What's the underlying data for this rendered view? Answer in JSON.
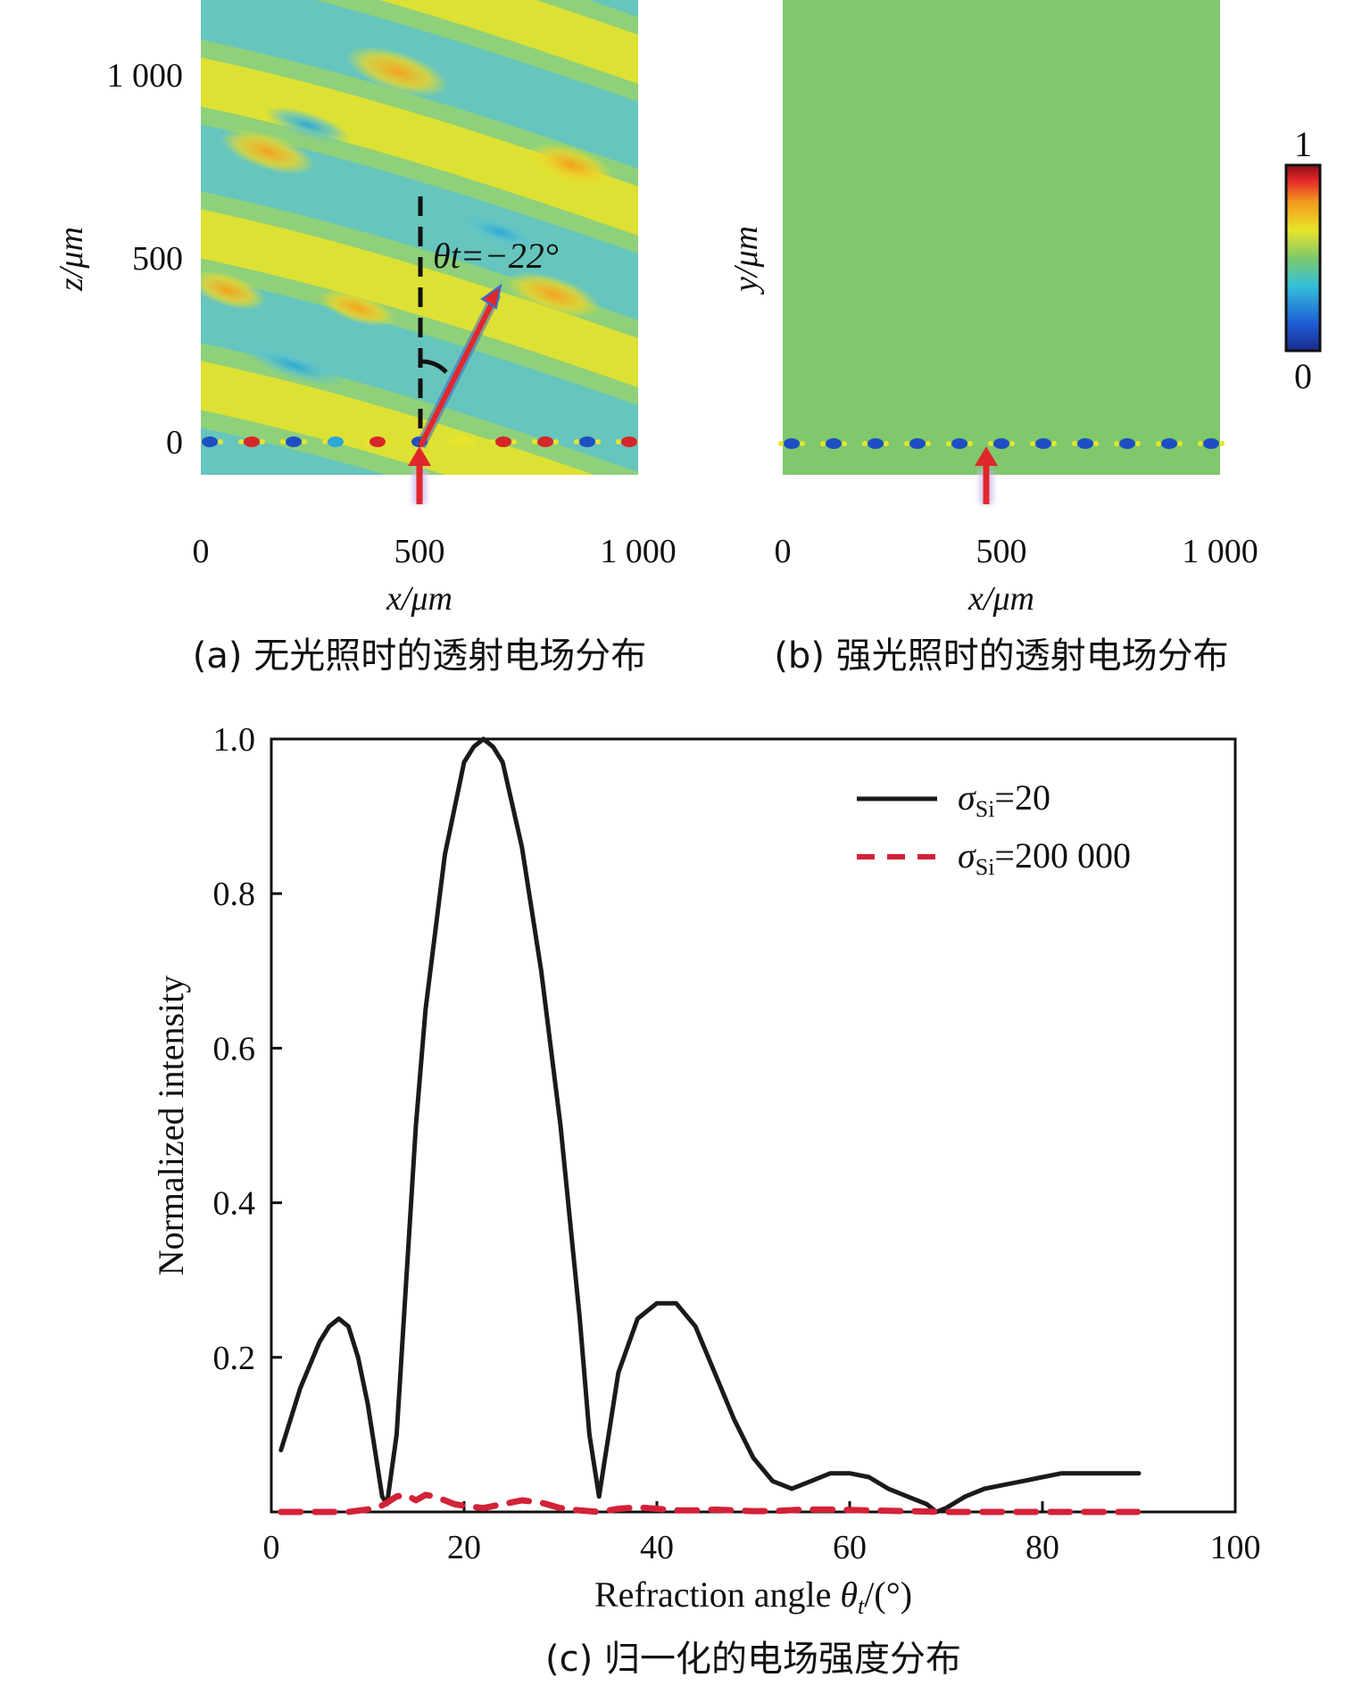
{
  "panel_a": {
    "caption": "(a) 无光照时的透射电场分布",
    "x_axis_label": "x/μm",
    "y_axis_label": "z/μm",
    "x_ticks": [
      "0",
      "500",
      "1 000"
    ],
    "y_ticks": [
      "0",
      "500",
      "1 000"
    ],
    "angle_annotation": "θt=−22°"
  },
  "panel_b": {
    "caption": "(b) 强光照时的透射电场分布",
    "x_axis_label": "x/μm",
    "y_axis_label": "y/μm",
    "x_ticks": [
      "0",
      "500",
      "1 000"
    ]
  },
  "colorbar": {
    "max_label": "1",
    "min_label": "0"
  },
  "colors": {
    "field_green": "#7fc86c",
    "field_yellow": "#e8e42a",
    "field_cyan": "#5fc3c9",
    "arrow_red": "#e0282c",
    "series_black": "#1a1a1a",
    "series_red": "#d32237"
  },
  "chart_data": {
    "type": "line",
    "caption": "(c) 归一化的电场强度分布",
    "xlabel": "Refraction angle θt/(°)",
    "ylabel": "Normalized intensity",
    "xlim": [
      0,
      100
    ],
    "ylim": [
      0,
      1.0
    ],
    "x_ticks": [
      "0",
      "20",
      "40",
      "60",
      "80",
      "100"
    ],
    "y_ticks": [
      "0.2",
      "0.4",
      "0.6",
      "0.8",
      "1.0"
    ],
    "legend_position": "top-right",
    "series": [
      {
        "name": "σSi=20",
        "style": "solid",
        "color": "#1a1a1a",
        "points": [
          [
            1,
            0.08
          ],
          [
            3,
            0.16
          ],
          [
            5,
            0.22
          ],
          [
            6,
            0.24
          ],
          [
            7,
            0.25
          ],
          [
            8,
            0.24
          ],
          [
            9,
            0.2
          ],
          [
            10,
            0.14
          ],
          [
            11,
            0.06
          ],
          [
            11.5,
            0.02
          ],
          [
            12,
            0.01
          ],
          [
            13,
            0.1
          ],
          [
            14,
            0.3
          ],
          [
            15,
            0.5
          ],
          [
            16,
            0.65
          ],
          [
            18,
            0.85
          ],
          [
            20,
            0.97
          ],
          [
            21,
            0.99
          ],
          [
            22,
            1.0
          ],
          [
            23,
            0.99
          ],
          [
            24,
            0.97
          ],
          [
            26,
            0.86
          ],
          [
            28,
            0.7
          ],
          [
            30,
            0.5
          ],
          [
            32,
            0.25
          ],
          [
            33,
            0.1
          ],
          [
            34,
            0.02
          ],
          [
            35,
            0.1
          ],
          [
            36,
            0.18
          ],
          [
            38,
            0.25
          ],
          [
            40,
            0.27
          ],
          [
            42,
            0.27
          ],
          [
            44,
            0.24
          ],
          [
            46,
            0.18
          ],
          [
            48,
            0.12
          ],
          [
            50,
            0.07
          ],
          [
            52,
            0.04
          ],
          [
            54,
            0.03
          ],
          [
            56,
            0.04
          ],
          [
            58,
            0.05
          ],
          [
            60,
            0.05
          ],
          [
            62,
            0.045
          ],
          [
            64,
            0.03
          ],
          [
            66,
            0.02
          ],
          [
            68,
            0.01
          ],
          [
            69,
            0.0
          ],
          [
            70,
            0.005
          ],
          [
            72,
            0.02
          ],
          [
            74,
            0.03
          ],
          [
            76,
            0.035
          ],
          [
            78,
            0.04
          ],
          [
            80,
            0.045
          ],
          [
            82,
            0.05
          ],
          [
            85,
            0.05
          ],
          [
            88,
            0.05
          ],
          [
            90,
            0.05
          ]
        ]
      },
      {
        "name": "σSi=200 000",
        "style": "dashed",
        "color": "#d32237",
        "points": [
          [
            1,
            0.0
          ],
          [
            5,
            0.0
          ],
          [
            8,
            0.0
          ],
          [
            11,
            0.005
          ],
          [
            12,
            0.012
          ],
          [
            13,
            0.02
          ],
          [
            14,
            0.022
          ],
          [
            15,
            0.015
          ],
          [
            16,
            0.022
          ],
          [
            17,
            0.02
          ],
          [
            18,
            0.015
          ],
          [
            19,
            0.01
          ],
          [
            20,
            0.008
          ],
          [
            22,
            0.005
          ],
          [
            24,
            0.01
          ],
          [
            26,
            0.015
          ],
          [
            28,
            0.012
          ],
          [
            30,
            0.005
          ],
          [
            32,
            0.002
          ],
          [
            34,
            0.0
          ],
          [
            36,
            0.004
          ],
          [
            38,
            0.006
          ],
          [
            40,
            0.004
          ],
          [
            42,
            0.002
          ],
          [
            44,
            0.002
          ],
          [
            46,
            0.003
          ],
          [
            48,
            0.002
          ],
          [
            50,
            0.001
          ],
          [
            52,
            0.001
          ],
          [
            55,
            0.003
          ],
          [
            58,
            0.003
          ],
          [
            62,
            0.002
          ],
          [
            66,
            0.001
          ],
          [
            70,
            0.0
          ],
          [
            75,
            0.0
          ],
          [
            80,
            0.0
          ],
          [
            85,
            0.0
          ],
          [
            90,
            0.0
          ]
        ]
      }
    ]
  }
}
